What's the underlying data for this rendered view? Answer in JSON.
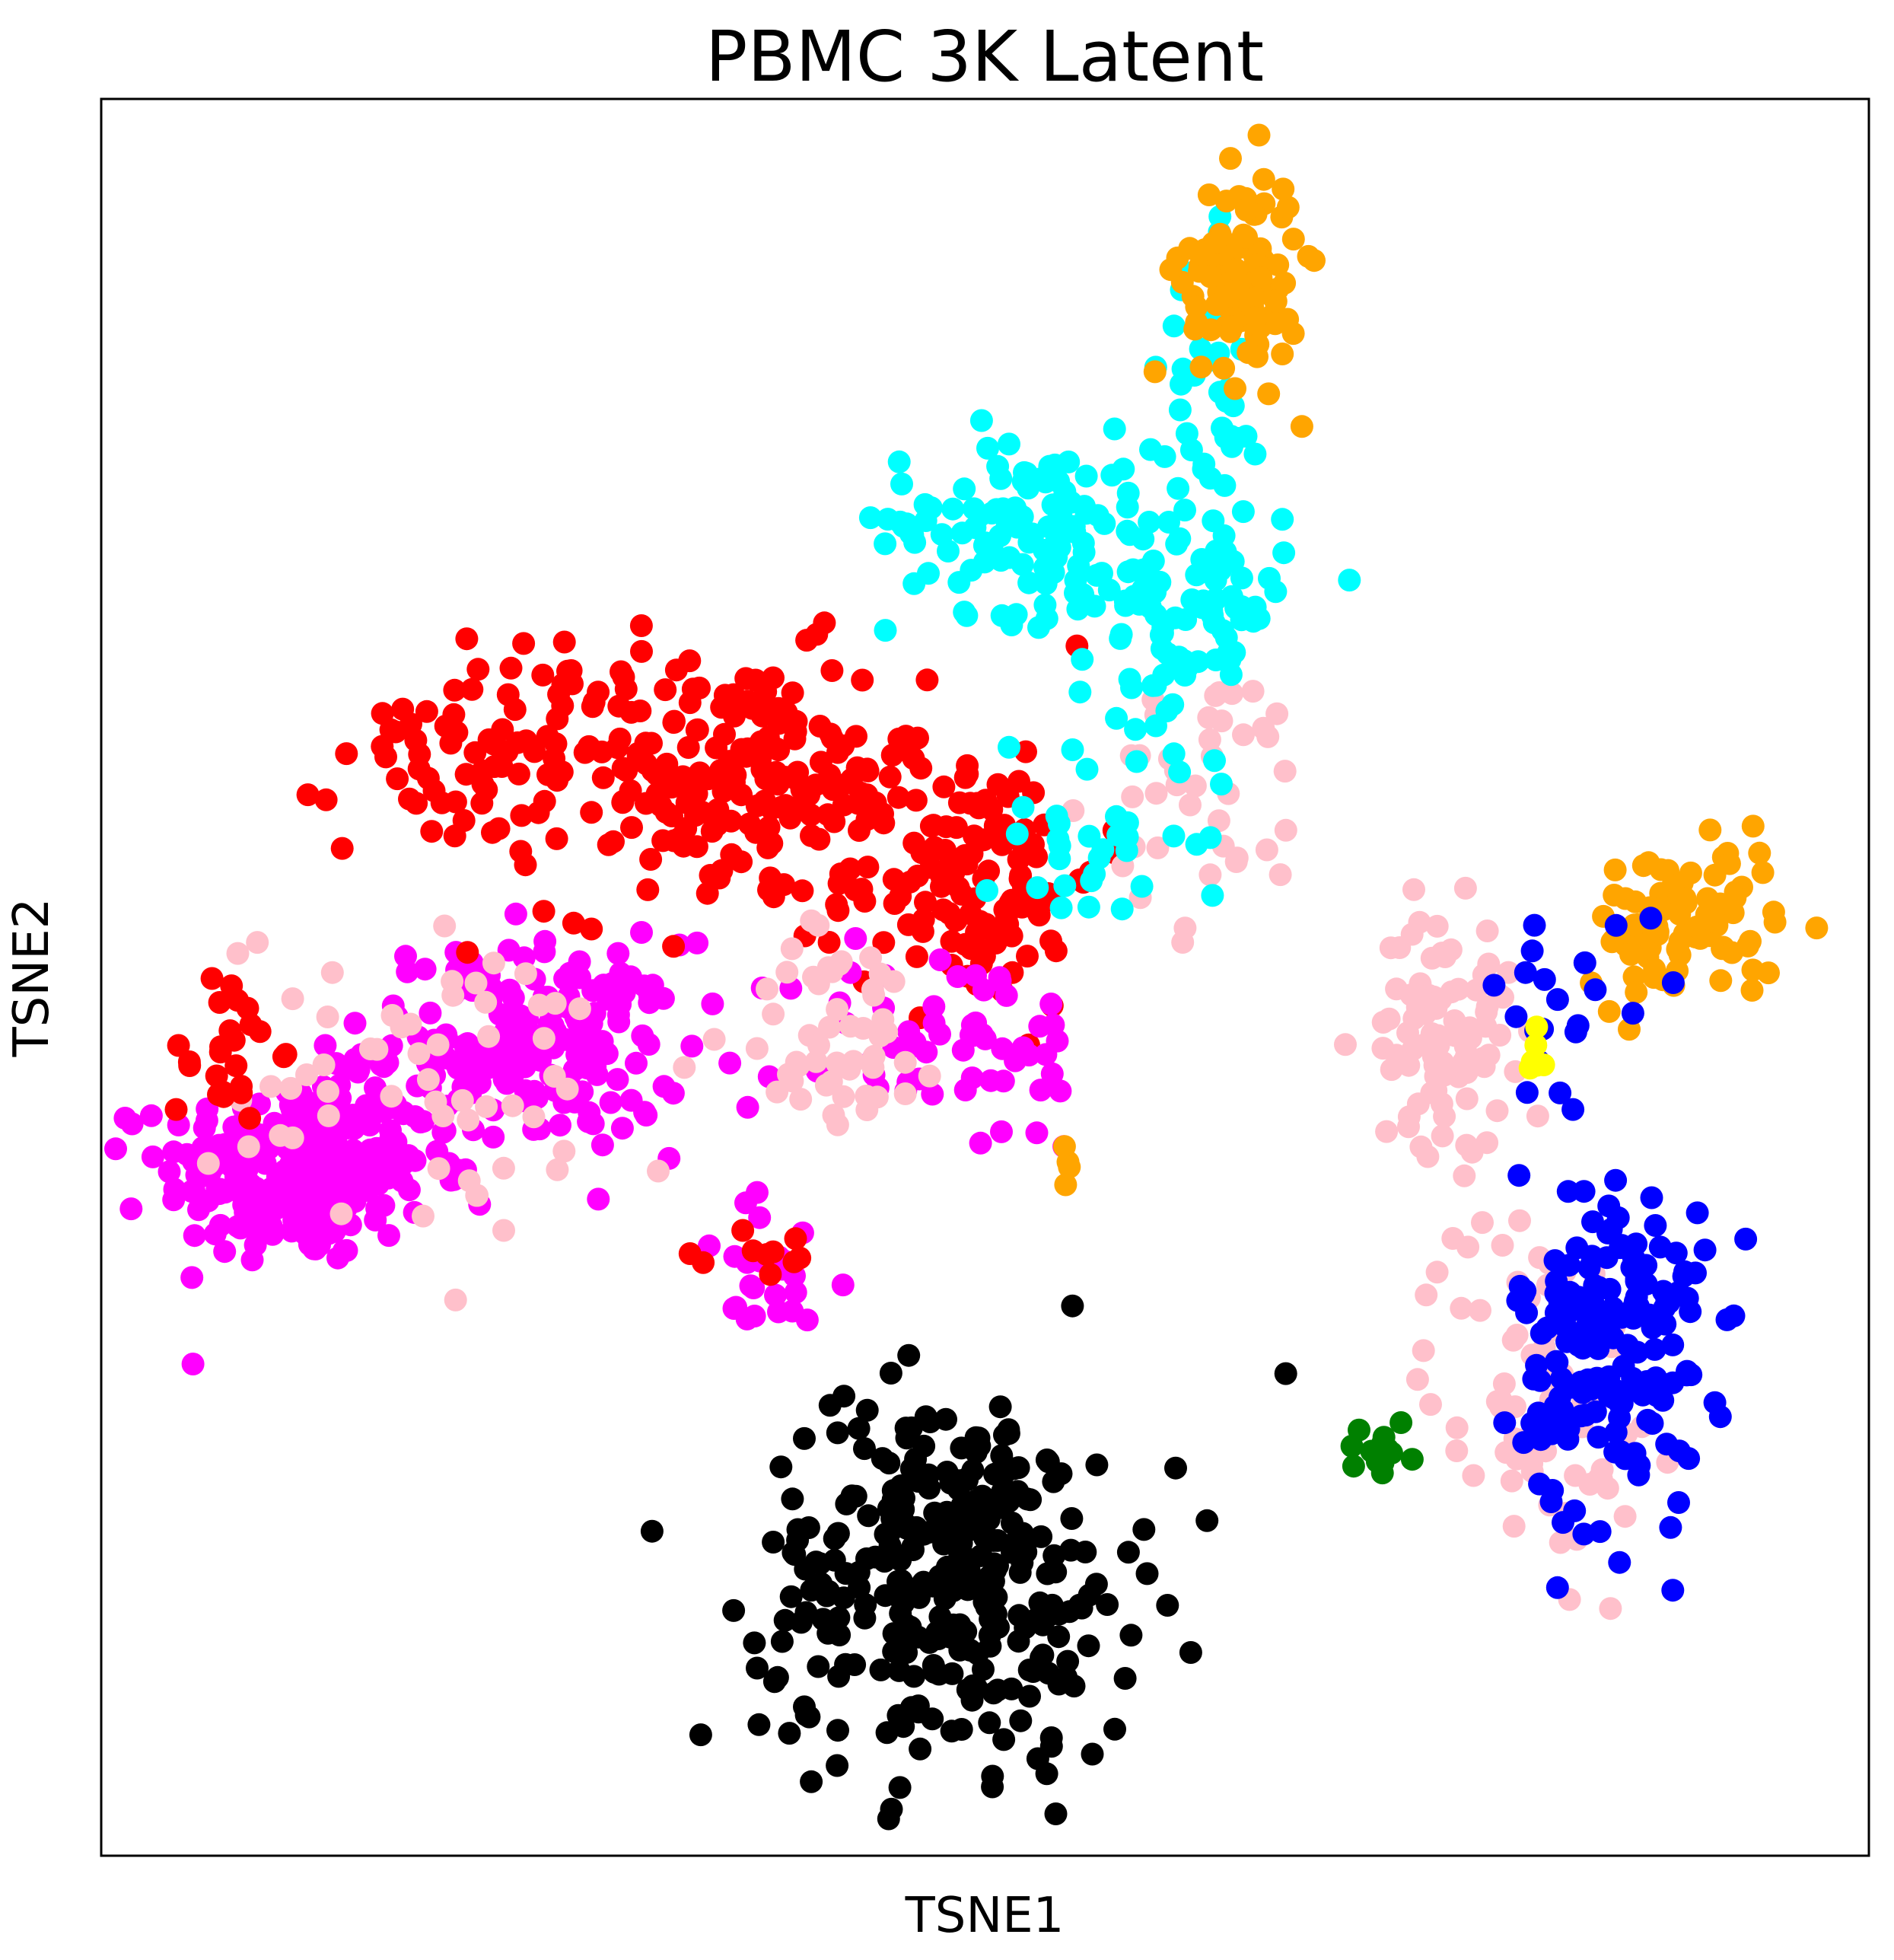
{
  "chart_data": {
    "type": "scatter",
    "title": "PBMC 3K Latent",
    "xlabel": "TSNE1",
    "ylabel": "TSNE2",
    "xlim": [
      0,
      100
    ],
    "ylim": [
      0,
      100
    ],
    "xticks": "none",
    "yticks": "none",
    "grid": false,
    "legend": "none",
    "colors": {
      "orange": "#ffa500",
      "cyan": "#00ffff",
      "red": "#ff0000",
      "magenta": "#ff00ff",
      "pink": "#ffc0cb",
      "black": "#000000",
      "blue": "#0000ff",
      "green": "#008000",
      "yellow": "#ffff00"
    },
    "clusters": [
      {
        "color": "magenta",
        "cx": 11,
        "cy": 39,
        "sx": 5,
        "sy": 3.5,
        "n": 260
      },
      {
        "color": "magenta",
        "cx": 24,
        "cy": 46,
        "sx": 6,
        "sy": 4,
        "n": 200
      },
      {
        "color": "magenta",
        "cx": 38,
        "cy": 33,
        "sx": 3,
        "sy": 3,
        "n": 25
      },
      {
        "color": "pink",
        "cx": 20,
        "cy": 44,
        "sx": 9,
        "sy": 6,
        "n": 60
      },
      {
        "color": "red",
        "cx": 23,
        "cy": 63,
        "sx": 6,
        "sy": 4,
        "n": 90
      },
      {
        "color": "red",
        "cx": 36,
        "cy": 61,
        "sx": 7,
        "sy": 5,
        "n": 180
      },
      {
        "color": "red",
        "cx": 49,
        "cy": 56,
        "sx": 5,
        "sy": 5,
        "n": 130
      },
      {
        "color": "red",
        "cx": 7,
        "cy": 46,
        "sx": 2,
        "sy": 3,
        "n": 25
      },
      {
        "color": "red",
        "cx": 38,
        "cy": 34,
        "sx": 2,
        "sy": 1.5,
        "n": 10
      },
      {
        "color": "magenta",
        "cx": 48,
        "cy": 46,
        "sx": 6,
        "sy": 4,
        "n": 60
      },
      {
        "color": "pink",
        "cx": 42,
        "cy": 47,
        "sx": 4,
        "sy": 4,
        "n": 50
      },
      {
        "color": "pink",
        "cx": 63,
        "cy": 60,
        "sx": 4,
        "sy": 5,
        "n": 40
      },
      {
        "color": "cyan",
        "cx": 52,
        "cy": 76,
        "sx": 5,
        "sy": 3.5,
        "n": 110
      },
      {
        "color": "cyan",
        "cx": 61,
        "cy": 71,
        "sx": 4,
        "sy": 5,
        "n": 100
      },
      {
        "color": "cyan",
        "cx": 56,
        "cy": 58,
        "sx": 4,
        "sy": 3.5,
        "n": 30
      },
      {
        "color": "cyan",
        "cx": 63,
        "cy": 82,
        "sx": 2,
        "sy": 6,
        "n": 40
      },
      {
        "color": "orange",
        "cx": 64.5,
        "cy": 90,
        "sx": 2.2,
        "sy": 4,
        "n": 110
      },
      {
        "color": "orange",
        "cx": 89.5,
        "cy": 53,
        "sx": 3.5,
        "sy": 3,
        "n": 100
      },
      {
        "color": "orange",
        "cx": 54.5,
        "cy": 39,
        "sx": 0.3,
        "sy": 1.2,
        "n": 4
      },
      {
        "color": "pink",
        "cx": 76,
        "cy": 47,
        "sx": 2.5,
        "sy": 4.5,
        "n": 90
      },
      {
        "color": "pink",
        "cx": 81,
        "cy": 27,
        "sx": 4,
        "sy": 7,
        "n": 80
      },
      {
        "color": "blue",
        "cx": 85.5,
        "cy": 29,
        "sx": 3.5,
        "sy": 7,
        "n": 190
      },
      {
        "color": "blue",
        "cx": 83,
        "cy": 49,
        "sx": 4,
        "sy": 3,
        "n": 20
      },
      {
        "color": "black",
        "cx": 48,
        "cy": 16,
        "sx": 7,
        "sy": 7,
        "n": 320
      },
      {
        "color": "green",
        "cx": 72,
        "cy": 23,
        "sx": 1.5,
        "sy": 1,
        "n": 14
      },
      {
        "color": "yellow",
        "cx": 81,
        "cy": 45.5,
        "sx": 0.4,
        "sy": 0.8,
        "n": 6
      }
    ]
  }
}
